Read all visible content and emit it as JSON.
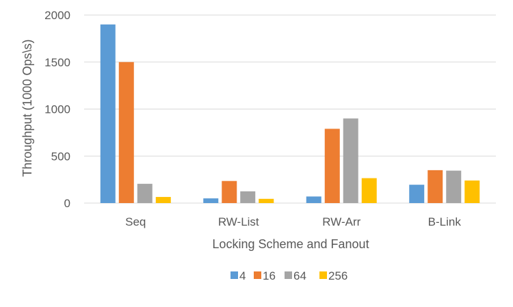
{
  "chart_data": {
    "type": "bar",
    "title": "",
    "xlabel": "Locking Scheme and Fanout",
    "ylabel": "Throughput (1000 Ops\\s)",
    "categories": [
      "Seq",
      "RW-List",
      "RW-Arr",
      "B-Link"
    ],
    "yticks": [
      "0",
      "500",
      "1000",
      "1500",
      "2000"
    ],
    "ylim": [
      0,
      2000
    ],
    "grid": true,
    "legend_position": "bottom",
    "series": [
      {
        "name": "4",
        "color": "#5B9BD5",
        "values": [
          1900,
          50,
          70,
          195
        ]
      },
      {
        "name": "16",
        "color": "#ED7D31",
        "values": [
          1500,
          235,
          790,
          350
        ]
      },
      {
        "name": "64",
        "color": "#A5A5A5",
        "values": [
          205,
          125,
          900,
          345
        ]
      },
      {
        "name": "256",
        "color": "#FFC000",
        "values": [
          65,
          45,
          265,
          240
        ]
      }
    ]
  }
}
